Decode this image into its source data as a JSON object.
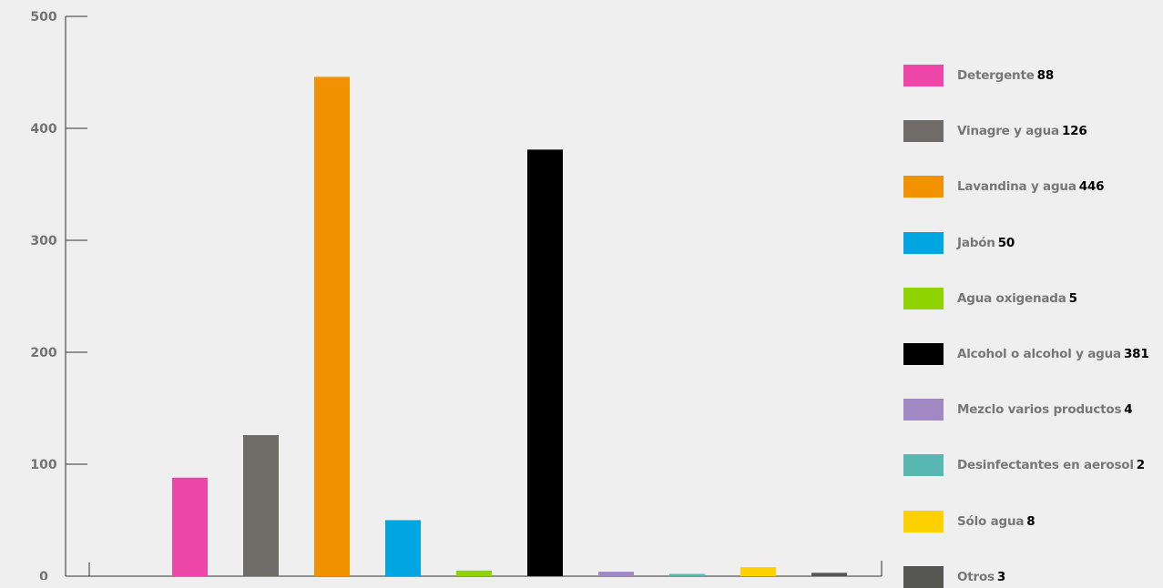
{
  "chart_data": {
    "type": "bar",
    "ylim": [
      0,
      500
    ],
    "yticks": [
      0,
      100,
      200,
      300,
      400,
      500
    ],
    "grid": false,
    "legend_position": "right",
    "categories": [
      "Detergente",
      "Vinagre y agua",
      "Lavandina y agua",
      "Jabón",
      "Agua oxigenada",
      "Alcohol o alcohol y agua",
      "Mezclo varios productos",
      "Desinfectantes en aerosol",
      "Sólo agua",
      "Otros"
    ],
    "values": [
      88,
      126,
      446,
      50,
      5,
      381,
      4,
      2,
      8,
      3
    ],
    "colors": [
      "#ee46a9",
      "#6f6c68",
      "#f39200",
      "#00a6e1",
      "#8fd400",
      "#000000",
      "#a288c2",
      "#58b7b0",
      "#fdd000",
      "#555552"
    ],
    "legend": [
      {
        "label": "Detergente",
        "value": "88"
      },
      {
        "label": "Vinagre y agua",
        "value": "126"
      },
      {
        "label": "Lavandina y agua",
        "value": "446"
      },
      {
        "label": "Jabón",
        "value": "50"
      },
      {
        "label": "Agua oxigenada",
        "value": "5"
      },
      {
        "label": "Alcohol o alcohol y agua",
        "value": "381"
      },
      {
        "label": "Mezclo varios productos",
        "value": "4"
      },
      {
        "label": "Desinfectantes en aerosol",
        "value": "2"
      },
      {
        "label": "Sólo agua",
        "value": "8"
      },
      {
        "label": "Otros",
        "value": "3"
      }
    ]
  }
}
